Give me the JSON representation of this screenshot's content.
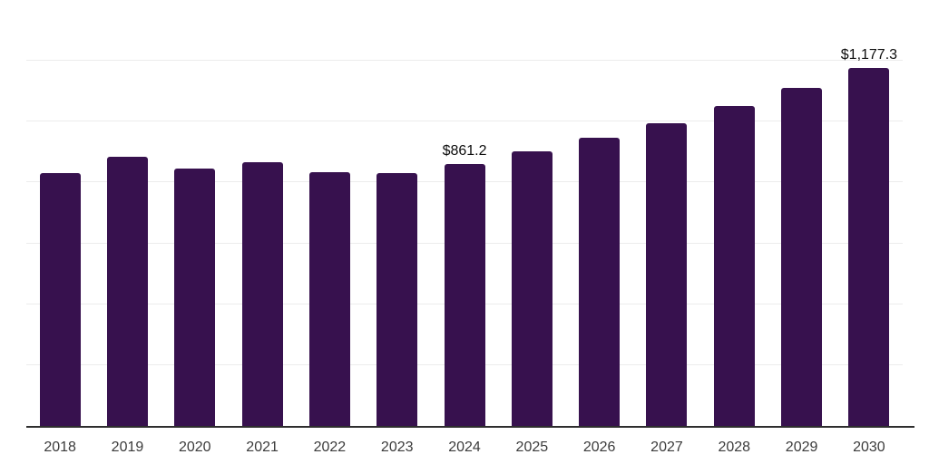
{
  "chart_data": {
    "type": "bar",
    "categories": [
      "2018",
      "2019",
      "2020",
      "2021",
      "2022",
      "2023",
      "2024",
      "2025",
      "2026",
      "2027",
      "2028",
      "2029",
      "2030"
    ],
    "values": [
      830,
      884,
      846,
      866,
      834,
      832,
      861.2,
      902,
      946,
      995,
      1051,
      1112,
      1177.3
    ],
    "data_labels": [
      "",
      "",
      "",
      "",
      "",
      "",
      "$861.2",
      "",
      "",
      "",
      "",
      "",
      "$1,177.3"
    ],
    "ylim": [
      0,
      1400
    ],
    "gridline_interval": 200,
    "grid": "horizontal",
    "legend": "none",
    "y_axis_tick_labels": "none",
    "colors": {
      "bar": "#37114E",
      "axis_line": "#2e2e2e",
      "gridline": "#ececec",
      "x_tick_label": "#3b3b3b",
      "data_label": "#0d0d0d",
      "background": "#ffffff"
    }
  }
}
